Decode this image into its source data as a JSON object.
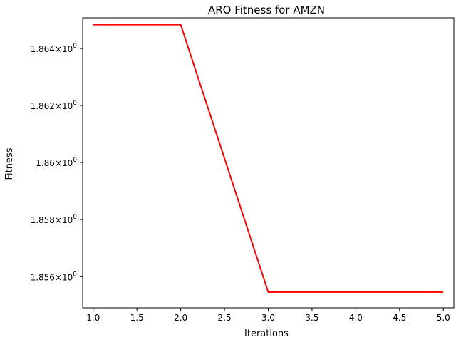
{
  "chart_data": {
    "type": "line",
    "title": "ARO Fitness for AMZN",
    "xlabel": "Iterations",
    "ylabel": "Fitness",
    "y_scale": "log",
    "xlim": [
      0.88,
      5.12
    ],
    "ylim": [
      1.85491,
      1.86508
    ],
    "x_ticks": [
      1.0,
      1.5,
      2.0,
      2.5,
      3.0,
      3.5,
      4.0,
      4.5,
      5.0
    ],
    "x_tick_labels": [
      "1.0",
      "1.5",
      "2.0",
      "2.5",
      "3.0",
      "3.5",
      "4.0",
      "4.5",
      "5.0"
    ],
    "y_ticks": [
      {
        "value": 1.856,
        "mantissa": "1.856",
        "base": "10",
        "exp": "0"
      },
      {
        "value": 1.858,
        "mantissa": "1.858",
        "base": "10",
        "exp": "0"
      },
      {
        "value": 1.86,
        "mantissa": "1.86",
        "base": "10",
        "exp": "0"
      },
      {
        "value": 1.862,
        "mantissa": "1.862",
        "base": "10",
        "exp": "0"
      },
      {
        "value": 1.864,
        "mantissa": "1.864",
        "base": "10",
        "exp": "0"
      }
    ],
    "grid": false,
    "series": [
      {
        "color": "#ff0000",
        "x": [
          1,
          2,
          3,
          4,
          5
        ],
        "y": [
          1.86484,
          1.86484,
          1.85546,
          1.85546,
          1.85546
        ]
      }
    ]
  }
}
